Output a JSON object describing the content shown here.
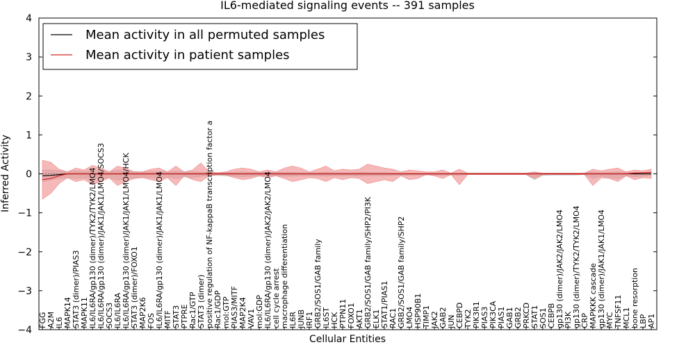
{
  "chart_data": {
    "type": "line",
    "title": "IL6-mediated signaling events -- 391 samples",
    "xlabel": "Cellular Entities",
    "ylabel": "Inferred Activity",
    "ylim": [
      -4,
      4
    ],
    "yticks": [
      "−4",
      "−3",
      "−2",
      "−1",
      "0",
      "1",
      "2",
      "3",
      "4"
    ],
    "grid": false,
    "legend_position": "top-left",
    "colors": {
      "permuted": "#000000",
      "patient": "#d62020",
      "patient_band": "#ef8080",
      "permuted_band": "#b4b4b4"
    },
    "categories": [
      "FGG",
      "A2M",
      "IL6",
      "MAPK14",
      "STAT3 (dimer)/PIAS3",
      "MAPK11",
      "IL6/IL6RA/gp130 (dimer)/TYK2/TYK2/LMO4",
      "IL6/IL6RA/gp130 (dimer)/JAK1/JAK1/LMO4/SOCS3",
      "SOCS3",
      "IL6/IL6RA",
      "IL6/IL6RA/gp130 (dimer)/JAK1/JAK1/LMO4/HCK",
      "STAT3 (dimer)/FOXO1",
      "MAP2K6",
      "FOS",
      "IL6/IL6RA/gp130 (dimer)/JAK1/JAK1/LMO4",
      "MITF",
      "STAT3",
      "PTPRE",
      "Rac1/GTP",
      "STAT3 (dimer)",
      "positive regulation of NF-kappaB transcription factor a",
      "Rac1/GDP",
      "mol:GTP",
      "PIAS3/MITF",
      "MAP2K4",
      "VAV1",
      "mol:GDP",
      "IL6/IL6RA/gp130 (dimer)/JAK2/JAK2/LMO4",
      "cell cycle arrest",
      "macrophage differentiation",
      "IL6R",
      "JUNB",
      "IRF1",
      "GRB2/SOS1/GAB family",
      "IL6ST",
      "HCK",
      "PTPN11",
      "FOXO1",
      "AKT1",
      "GRB2/SOS1/GAB family/SHP2/PI3K",
      "ELK1",
      "STAT1/PIAS1",
      "RAC1",
      "GRB2/SOS1/GAB family/SHP2",
      "LMO4",
      "HSP90B1",
      "TIMP1",
      "JAK2",
      "GAB2",
      "JUN",
      "CEBPD",
      "TYK2",
      "PIK3R1",
      "PIAS3",
      "PIK3CA",
      "PIAS1",
      "GAB1",
      "GRB2",
      "PRKCD",
      "STAT1",
      "SOS1",
      "CEBPB",
      "gp130 (dimer)/JAK2/JAK2/LMO4",
      "PI3K",
      "gp130 (dimer)/TYK2/TYK2/LMO4",
      "CRP",
      "MAPKKK cascade",
      "gp130 (dimer)/JAK1/JAK1/LMO4",
      "MYC",
      "TNFSF11",
      "MCL1",
      "bone resorption",
      "LBP",
      "AP1"
    ],
    "series": [
      {
        "name": "Mean activity in all permuted samples",
        "values": [
          -0.05,
          -0.04,
          -0.02,
          0.0,
          0.0,
          0.0,
          0.0,
          0.0,
          0.0,
          0.0,
          0.0,
          0.0,
          0.0,
          0.0,
          0.0,
          0.0,
          0.0,
          0.0,
          0.0,
          0.0,
          0.0,
          0.0,
          0.0,
          0.0,
          0.0,
          0.0,
          0.0,
          0.0,
          0.0,
          0.0,
          0.0,
          0.0,
          0.0,
          0.0,
          0.0,
          0.0,
          0.0,
          0.0,
          0.0,
          0.0,
          0.0,
          0.0,
          0.0,
          0.0,
          0.0,
          0.0,
          0.0,
          0.0,
          0.0,
          0.0,
          0.0,
          0.0,
          0.0,
          0.0,
          0.0,
          0.0,
          0.0,
          0.0,
          0.0,
          0.0,
          0.0,
          0.0,
          0.0,
          0.0,
          0.0,
          0.0,
          0.0,
          0.0,
          0.0,
          0.0,
          0.0,
          0.0,
          0.0,
          0.0
        ],
        "lower": [
          -0.2,
          -0.15,
          -0.12,
          -0.1,
          -0.12,
          -0.1,
          -0.14,
          -0.12,
          -0.1,
          -0.16,
          -0.12,
          -0.1,
          -0.08,
          -0.1,
          -0.1,
          -0.08,
          -0.12,
          -0.08,
          -0.1,
          -0.06,
          -0.05,
          -0.04,
          -0.05,
          -0.06,
          -0.08,
          -0.06,
          -0.06,
          -0.05,
          -0.05,
          -0.06,
          -0.06,
          -0.05,
          -0.05,
          -0.05,
          -0.06,
          -0.05,
          -0.05,
          -0.05,
          -0.06,
          -0.05,
          -0.05,
          -0.05,
          -0.04,
          -0.04,
          -0.03,
          -0.03,
          -0.03,
          -0.03,
          -0.03,
          -0.03,
          -0.03,
          -0.02,
          -0.02,
          -0.02,
          -0.02,
          -0.02,
          -0.02,
          -0.02,
          -0.02,
          -0.15,
          -0.04,
          -0.03,
          -0.03,
          -0.03,
          -0.03,
          -0.02,
          -0.12,
          -0.06,
          -0.1,
          -0.12,
          -0.05,
          -0.08,
          -0.06,
          -0.04
        ],
        "upper": [
          0.1,
          0.1,
          0.08,
          0.05,
          0.08,
          0.06,
          0.08,
          0.06,
          0.05,
          0.1,
          0.06,
          0.06,
          0.05,
          0.05,
          0.06,
          0.05,
          0.07,
          0.05,
          0.05,
          0.04,
          0.04,
          0.03,
          0.04,
          0.04,
          0.05,
          0.04,
          0.04,
          0.04,
          0.04,
          0.04,
          0.04,
          0.03,
          0.03,
          0.03,
          0.04,
          0.03,
          0.03,
          0.03,
          0.04,
          0.03,
          0.03,
          0.03,
          0.02,
          0.02,
          0.02,
          0.02,
          0.02,
          0.02,
          0.02,
          0.02,
          0.02,
          0.02,
          0.02,
          0.02,
          0.02,
          0.02,
          0.02,
          0.02,
          0.02,
          0.05,
          0.02,
          0.02,
          0.02,
          0.02,
          0.02,
          0.02,
          0.05,
          0.03,
          0.04,
          0.05,
          0.03,
          0.04,
          0.03,
          0.02
        ]
      },
      {
        "name": "Mean activity in patient samples",
        "values": [
          -0.15,
          -0.12,
          -0.05,
          0.0,
          0.0,
          0.0,
          0.0,
          0.0,
          0.0,
          0.0,
          0.0,
          0.0,
          0.0,
          0.0,
          0.0,
          0.0,
          0.0,
          0.0,
          0.0,
          0.0,
          0.0,
          0.0,
          0.0,
          0.0,
          0.0,
          0.0,
          0.0,
          0.0,
          0.0,
          0.0,
          0.0,
          0.0,
          0.0,
          0.0,
          0.0,
          0.0,
          0.0,
          0.0,
          0.0,
          0.0,
          0.0,
          0.0,
          0.0,
          0.0,
          0.0,
          0.0,
          0.0,
          0.0,
          0.0,
          0.0,
          0.0,
          0.0,
          0.0,
          0.0,
          0.0,
          0.0,
          0.0,
          0.0,
          0.0,
          0.0,
          0.0,
          0.0,
          0.0,
          0.0,
          0.0,
          0.0,
          0.0,
          0.0,
          0.0,
          0.0,
          0.0,
          0.02,
          0.03,
          0.04
        ],
        "lower": [
          -0.65,
          -0.5,
          -0.25,
          -0.1,
          -0.2,
          -0.15,
          -0.28,
          -0.2,
          -0.1,
          -0.3,
          -0.2,
          -0.12,
          -0.1,
          -0.15,
          -0.2,
          -0.1,
          -0.3,
          -0.05,
          -0.15,
          -0.2,
          -0.05,
          -0.02,
          -0.03,
          -0.1,
          -0.15,
          -0.12,
          -0.05,
          -0.1,
          -0.05,
          -0.12,
          -0.2,
          -0.15,
          -0.1,
          -0.12,
          -0.2,
          -0.1,
          -0.15,
          -0.1,
          -0.12,
          -0.25,
          -0.2,
          -0.15,
          -0.2,
          -0.05,
          -0.15,
          -0.12,
          -0.02,
          -0.05,
          -0.12,
          -0.02,
          -0.28,
          -0.02,
          -0.02,
          -0.02,
          -0.02,
          -0.02,
          -0.02,
          -0.02,
          -0.02,
          -0.12,
          -0.02,
          -0.02,
          -0.02,
          -0.02,
          -0.02,
          -0.02,
          -0.3,
          -0.1,
          -0.12,
          -0.2,
          -0.05,
          -0.15,
          -0.1,
          -0.12
        ],
        "upper": [
          0.35,
          0.3,
          0.12,
          0.05,
          0.15,
          0.1,
          0.22,
          0.15,
          0.05,
          0.2,
          0.15,
          0.05,
          0.05,
          0.12,
          0.15,
          0.05,
          0.2,
          0.05,
          0.1,
          0.28,
          0.05,
          0.03,
          0.05,
          0.12,
          0.15,
          0.12,
          0.05,
          0.1,
          0.05,
          0.15,
          0.2,
          0.15,
          0.05,
          0.12,
          0.2,
          0.08,
          0.12,
          0.1,
          0.12,
          0.25,
          0.2,
          0.15,
          0.12,
          0.05,
          0.1,
          0.08,
          0.05,
          0.05,
          0.1,
          0.02,
          0.12,
          0.02,
          0.02,
          0.02,
          0.02,
          0.02,
          0.02,
          0.02,
          0.02,
          0.05,
          0.02,
          0.02,
          0.02,
          0.02,
          0.02,
          0.02,
          0.12,
          0.08,
          0.12,
          0.15,
          0.05,
          0.1,
          0.08,
          0.12
        ]
      }
    ]
  }
}
